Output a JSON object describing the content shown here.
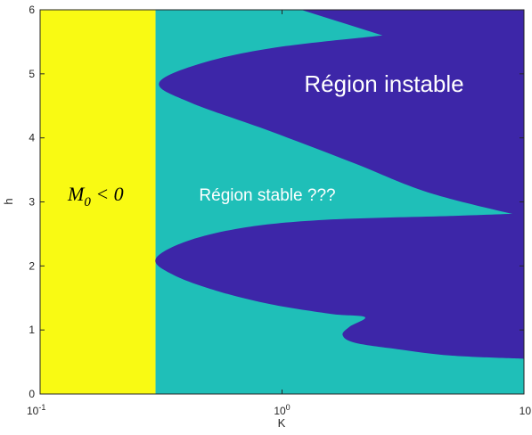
{
  "chart_data": {
    "type": "heatmap",
    "title": "",
    "xlabel": "K",
    "ylabel": "h",
    "xscale": "log",
    "xlim": [
      0.1,
      10
    ],
    "ylim": [
      0,
      6
    ],
    "grid": false,
    "xticks": [
      {
        "value": 0.1,
        "base": "10",
        "exp": "-1"
      },
      {
        "value": 1,
        "base": "10",
        "exp": "0"
      },
      {
        "value": 10,
        "base": "10",
        "exp": ""
      }
    ],
    "yticks": [
      "0",
      "1",
      "2",
      "3",
      "4",
      "5",
      "6"
    ],
    "colors": {
      "negative_M0": "#f9fa13",
      "stable": "#1fbfb8",
      "unstable": "#3d26a8"
    },
    "regions": [
      {
        "id": "negative-m0-region",
        "color": "negative_M0",
        "x_range": [
          0.1,
          0.3
        ],
        "y_range": [
          0,
          6
        ]
      },
      {
        "id": "stable-region",
        "color": "stable",
        "x_range": [
          0.3,
          10
        ],
        "y_range": [
          0,
          6
        ]
      },
      {
        "id": "unstable-region-top",
        "color": "unstable",
        "boundary": [
          [
            2.6,
            5.6
          ],
          [
            0.9,
            5.4
          ],
          [
            0.45,
            5.15
          ],
          [
            0.31,
            4.85
          ],
          [
            0.42,
            4.55
          ],
          [
            0.9,
            4.1
          ],
          [
            2.0,
            3.6
          ],
          [
            4.0,
            3.15
          ],
          [
            9.3,
            2.8
          ],
          [
            10,
            2.8
          ]
        ],
        "closed_to": [
          [
            10,
            6
          ],
          [
            1.2,
            6
          ]
        ]
      },
      {
        "id": "unstable-region-bottom",
        "color": "unstable",
        "boundary": [
          [
            10,
            2.82
          ],
          [
            5.0,
            2.78
          ],
          [
            1.5,
            2.72
          ],
          [
            0.7,
            2.6
          ],
          [
            0.4,
            2.38
          ],
          [
            0.3,
            2.1
          ],
          [
            0.36,
            1.85
          ],
          [
            0.55,
            1.6
          ],
          [
            0.9,
            1.4
          ],
          [
            1.6,
            1.25
          ],
          [
            2.2,
            1.2
          ],
          [
            1.9,
            1.05
          ],
          [
            1.78,
            0.92
          ],
          [
            2.0,
            0.8
          ],
          [
            3.0,
            0.7
          ],
          [
            5.0,
            0.6
          ],
          [
            10,
            0.55
          ]
        ]
      }
    ],
    "annotations": {
      "unstable": "Région instable",
      "stable": "Région stable ???",
      "m0_base": "M",
      "m0_sub": "0",
      "m0_rest": " < 0"
    }
  }
}
